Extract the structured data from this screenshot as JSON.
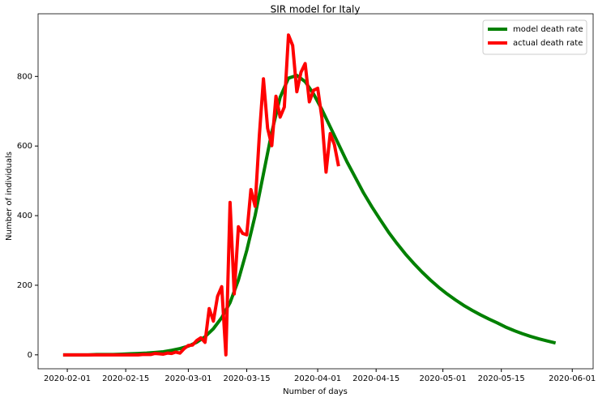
{
  "chart_data": {
    "type": "line",
    "title": "SIR model for Italy",
    "x_label": "Number of days",
    "y_label": "Number of individuals",
    "legend": "upper right",
    "grid": false,
    "xlim": [
      "2020-01-25",
      "2020-06-06"
    ],
    "xticks": [
      "2020-02-01",
      "2020-02-15",
      "2020-03-01",
      "2020-03-15",
      "2020-04-01",
      "2020-04-15",
      "2020-05-01",
      "2020-05-15",
      "2020-06-01"
    ],
    "ylim": [
      -40,
      980
    ],
    "yticks": [
      0,
      200,
      400,
      600,
      800
    ],
    "series": [
      {
        "name": "model death rate",
        "color": "#008000",
        "x": [
          "2020-01-31",
          "2020-02-02",
          "2020-02-04",
          "2020-02-06",
          "2020-02-08",
          "2020-02-10",
          "2020-02-12",
          "2020-02-14",
          "2020-02-16",
          "2020-02-18",
          "2020-02-20",
          "2020-02-22",
          "2020-02-24",
          "2020-02-26",
          "2020-02-28",
          "2020-03-01",
          "2020-03-03",
          "2020-03-05",
          "2020-03-07",
          "2020-03-09",
          "2020-03-11",
          "2020-03-13",
          "2020-03-15",
          "2020-03-17",
          "2020-03-19",
          "2020-03-21",
          "2020-03-23",
          "2020-03-25",
          "2020-03-27",
          "2020-03-29",
          "2020-03-31",
          "2020-04-02",
          "2020-04-04",
          "2020-04-06",
          "2020-04-08",
          "2020-04-10",
          "2020-04-12",
          "2020-04-14",
          "2020-04-16",
          "2020-04-18",
          "2020-04-20",
          "2020-04-22",
          "2020-04-24",
          "2020-04-26",
          "2020-04-28",
          "2020-04-30",
          "2020-05-02",
          "2020-05-04",
          "2020-05-06",
          "2020-05-08",
          "2020-05-10",
          "2020-05-12",
          "2020-05-14",
          "2020-05-16",
          "2020-05-18",
          "2020-05-20",
          "2020-05-22",
          "2020-05-24",
          "2020-05-26",
          "2020-05-28"
        ],
        "values": [
          0,
          0,
          0,
          0,
          1,
          1,
          1,
          2,
          3,
          4,
          5,
          7,
          9,
          13,
          18,
          25,
          36,
          52,
          75,
          107,
          150,
          215,
          300,
          400,
          520,
          640,
          740,
          795,
          803,
          785,
          750,
          705,
          655,
          605,
          555,
          510,
          465,
          425,
          388,
          352,
          320,
          290,
          263,
          238,
          215,
          194,
          175,
          158,
          142,
          128,
          115,
          103,
          92,
          80,
          70,
          61,
          53,
          46,
          40,
          34
        ]
      },
      {
        "name": "actual death rate",
        "color": "#ff0000",
        "x": [
          "2020-01-31",
          "2020-02-01",
          "2020-02-02",
          "2020-02-03",
          "2020-02-04",
          "2020-02-05",
          "2020-02-06",
          "2020-02-07",
          "2020-02-08",
          "2020-02-09",
          "2020-02-10",
          "2020-02-11",
          "2020-02-12",
          "2020-02-13",
          "2020-02-14",
          "2020-02-15",
          "2020-02-16",
          "2020-02-17",
          "2020-02-18",
          "2020-02-19",
          "2020-02-20",
          "2020-02-21",
          "2020-02-22",
          "2020-02-23",
          "2020-02-24",
          "2020-02-25",
          "2020-02-26",
          "2020-02-27",
          "2020-02-28",
          "2020-02-29",
          "2020-03-01",
          "2020-03-02",
          "2020-03-03",
          "2020-03-04",
          "2020-03-05",
          "2020-03-06",
          "2020-03-07",
          "2020-03-08",
          "2020-03-09",
          "2020-03-10",
          "2020-03-11",
          "2020-03-12",
          "2020-03-13",
          "2020-03-14",
          "2020-03-15",
          "2020-03-16",
          "2020-03-17",
          "2020-03-18",
          "2020-03-19",
          "2020-03-20",
          "2020-03-21",
          "2020-03-22",
          "2020-03-23",
          "2020-03-24",
          "2020-03-25",
          "2020-03-26",
          "2020-03-27",
          "2020-03-28",
          "2020-03-29",
          "2020-03-30",
          "2020-03-31",
          "2020-04-01",
          "2020-04-02",
          "2020-04-03",
          "2020-04-04",
          "2020-04-05",
          "2020-04-06"
        ],
        "values": [
          0,
          0,
          0,
          0,
          0,
          0,
          0,
          0,
          0,
          0,
          0,
          0,
          0,
          0,
          0,
          0,
          0,
          0,
          0,
          1,
          1,
          1,
          4,
          3,
          2,
          5,
          4,
          8,
          5,
          18,
          27,
          28,
          41,
          49,
          36,
          133,
          97,
          168,
          196,
          0,
          438,
          175,
          368,
          349,
          345,
          475,
          427,
          627,
          793,
          651,
          601,
          743,
          683,
          712,
          919,
          889,
          756,
          812,
          837,
          727,
          760,
          766,
          681,
          525,
          636,
          604,
          542
        ]
      }
    ]
  }
}
